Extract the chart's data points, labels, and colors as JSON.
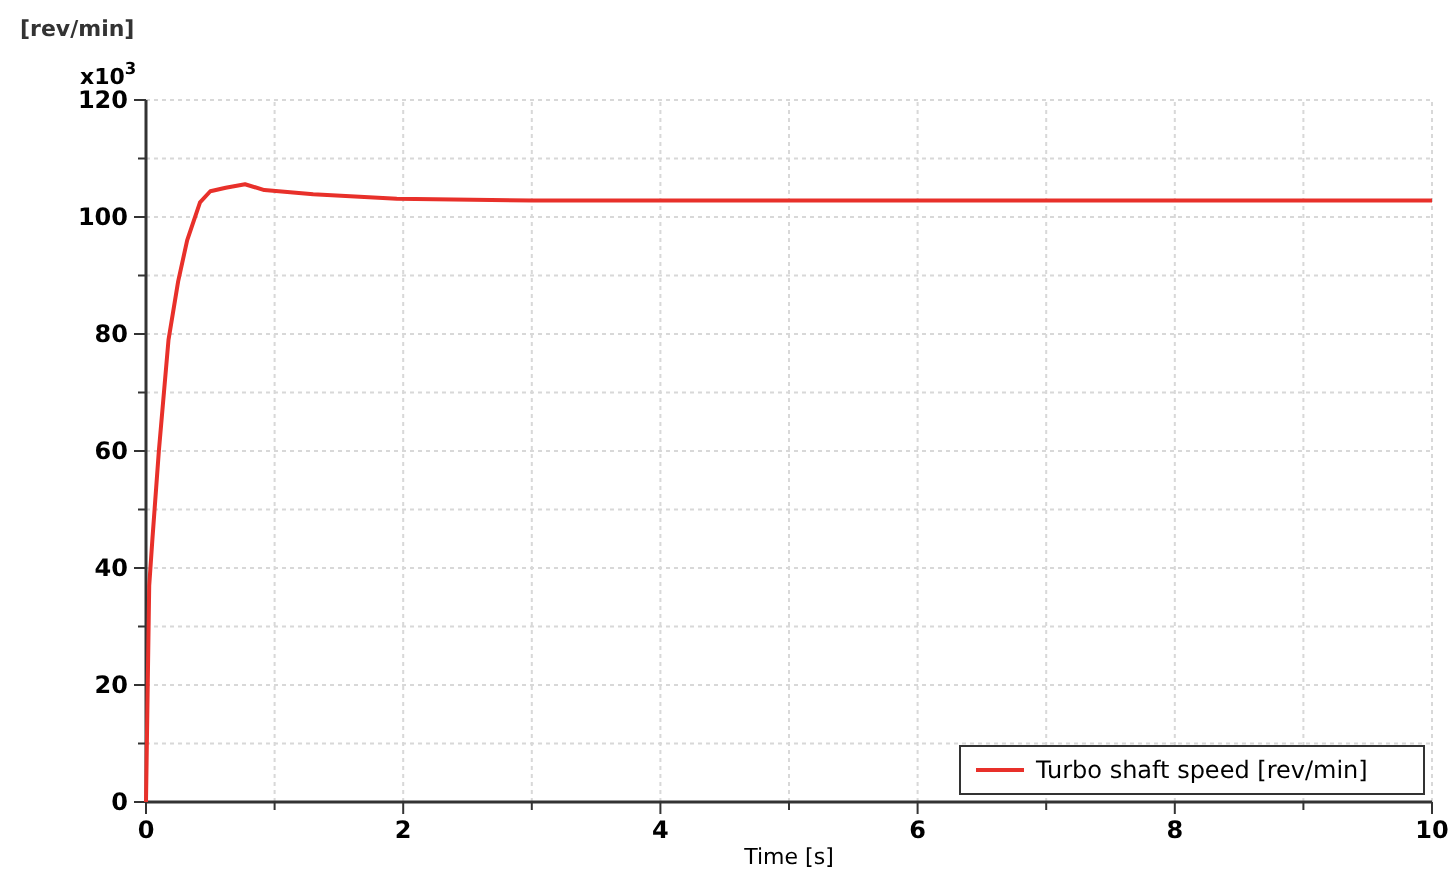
{
  "chart_data": {
    "type": "line",
    "ylabel": "[rev/min]",
    "xlabel": "Time [s]",
    "annotations": [
      "x10$^{3}$"
    ],
    "xlim": [
      0,
      10
    ],
    "ylim": [
      0,
      120
    ],
    "xticks": [
      0,
      {
        "value": 1,
        "label": null
      },
      2,
      {
        "value": 3,
        "label": null
      },
      4,
      {
        "value": 5,
        "label": null
      },
      6,
      {
        "value": 7,
        "label": null
      },
      8,
      {
        "value": 9,
        "label": null
      },
      10
    ],
    "yticks": [
      0,
      {
        "value": 10,
        "label": null
      },
      20,
      {
        "value": 30,
        "label": null
      },
      40,
      {
        "value": 50,
        "label": null
      },
      60,
      {
        "value": 70,
        "label": null
      },
      80,
      {
        "value": 90,
        "label": null
      },
      100,
      {
        "value": 110,
        "label": null
      },
      120
    ],
    "grid": true,
    "legend": "bottom right",
    "line_style": "solid",
    "marker": "none",
    "series": [
      {
        "name": "Turbo shaft speed [rev/min]",
        "color": "#e8302a",
        "x": [
          0,
          0.025,
          0.05,
          0.1,
          0.175,
          0.25,
          0.32,
          0.42,
          0.5,
          0.62,
          0.77,
          0.92,
          1.3,
          1.95,
          3,
          5,
          10
        ],
        "values": [
          0,
          37,
          45,
          60,
          79,
          89,
          96,
          102.5,
          104.4,
          105,
          105.6,
          104.6,
          103.9,
          103.1,
          102.8,
          102.8,
          102.8
        ]
      }
    ]
  }
}
